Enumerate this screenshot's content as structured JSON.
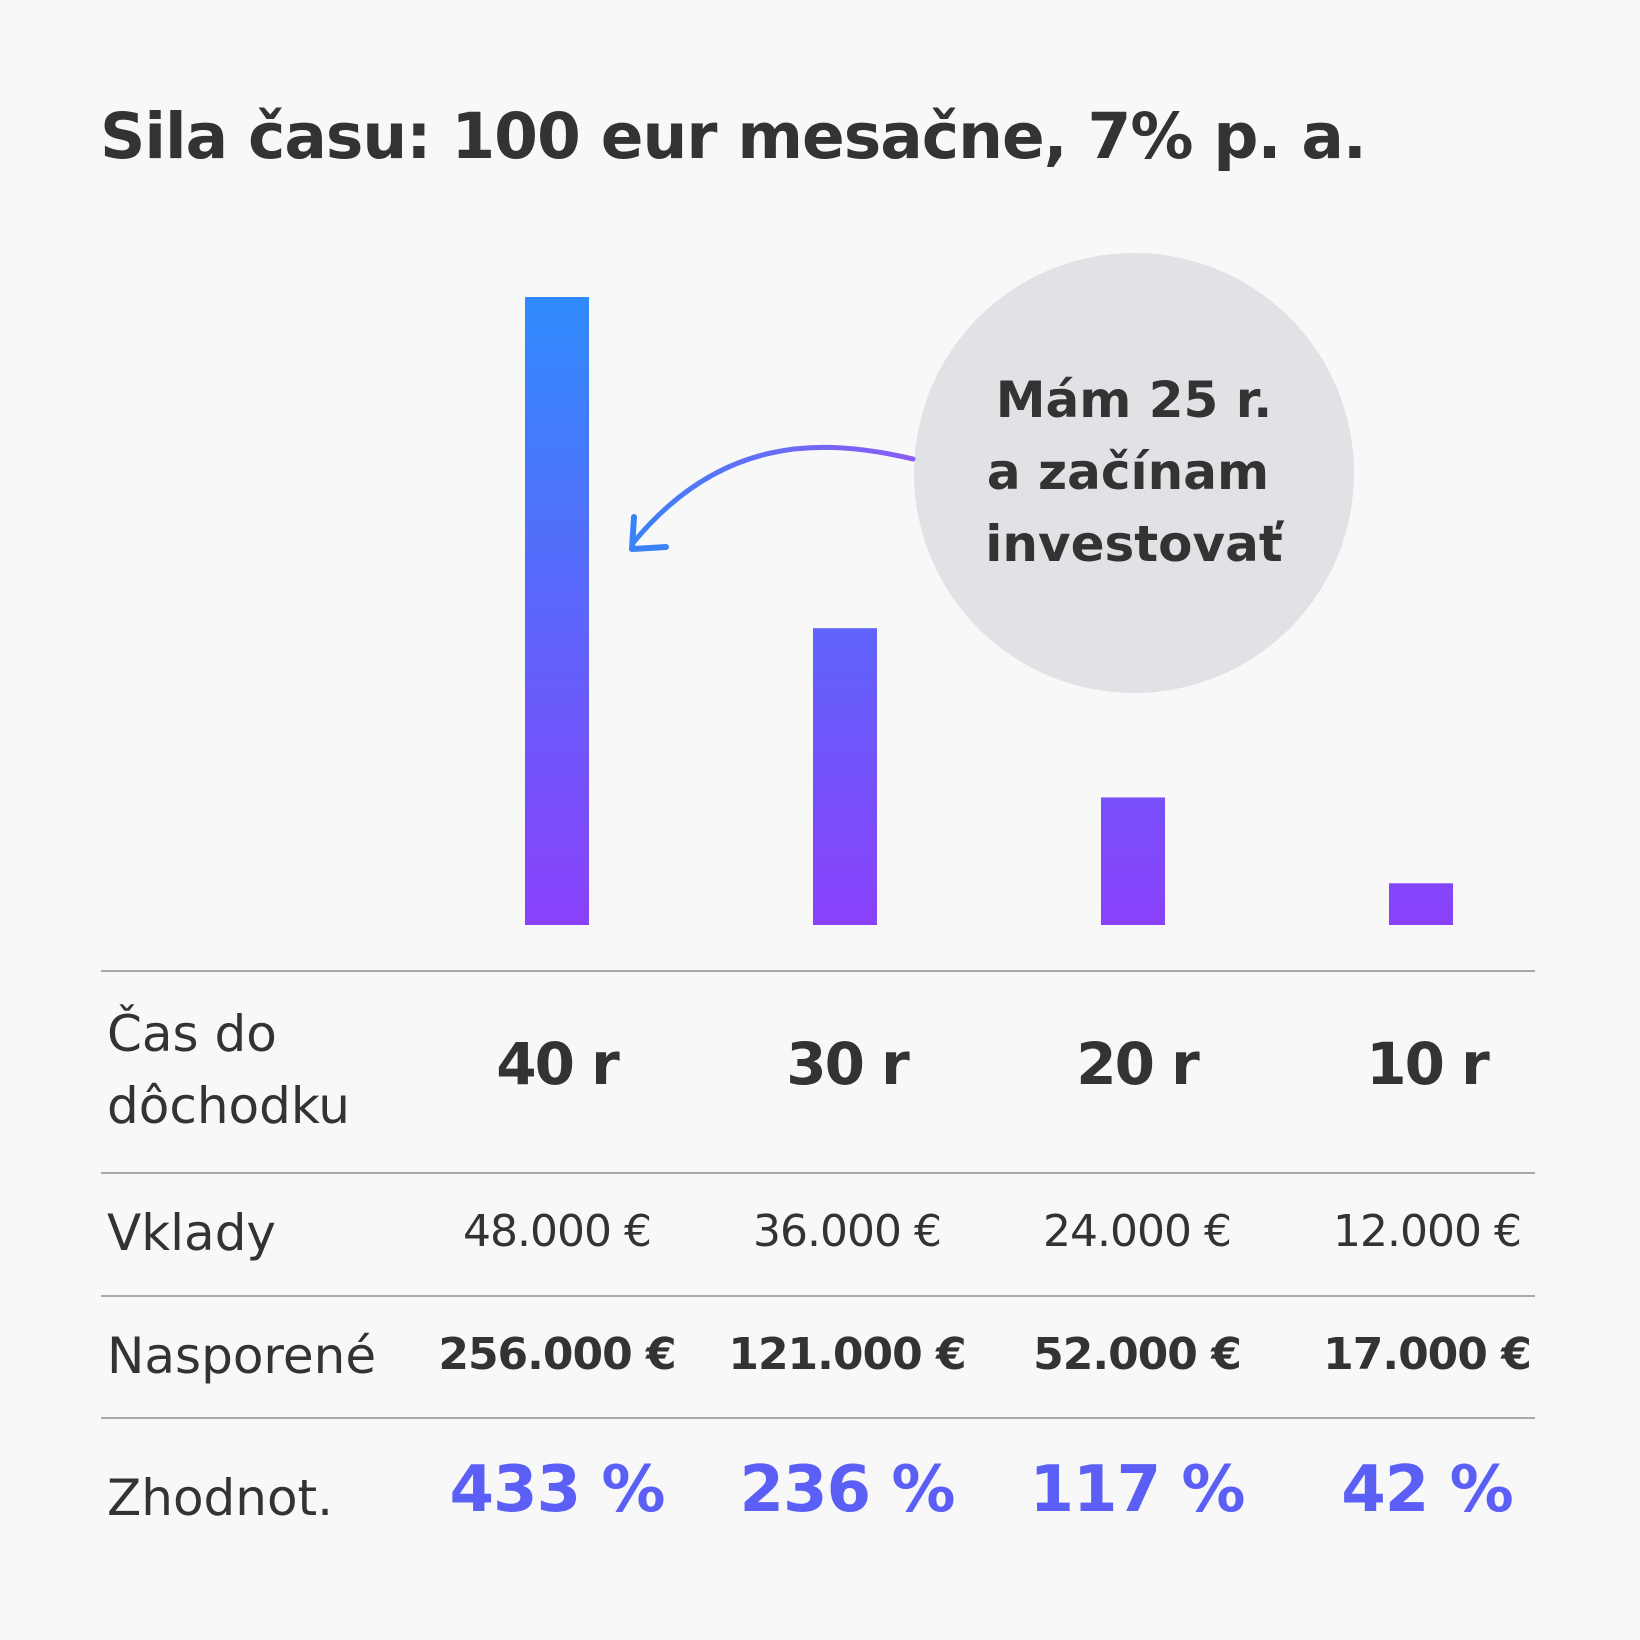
{
  "colors": {
    "background": "#f8f8f8",
    "text": "#333333",
    "bar_top": "#2f8bfc",
    "bar_bottom": "#8a41fa",
    "arrow_start": "#3b82f6",
    "arrow_end": "#8b5cf6",
    "bubble": "#e1e2e5",
    "growth_text": "#5b5ff5",
    "rule": "#a9a9a9"
  },
  "chart_data": {
    "type": "bar",
    "title": "Sila času: 100 eur mesačne, 7% p. a.",
    "categories": [
      "40 r",
      "30 r",
      "20 r",
      "10 r"
    ],
    "values": [
      256000,
      121000,
      52000,
      17000
    ],
    "ylim": [
      0,
      256000
    ],
    "grid": false,
    "legend": "none",
    "annotation": {
      "lines": [
        "Mám 25 r.",
        "a začínam",
        "investovať"
      ],
      "points_to": "40 r"
    }
  },
  "table": {
    "rows": [
      {
        "label_lines": [
          "Čas do",
          "dôchodku"
        ],
        "cells": [
          "40 r",
          "30 r",
          "20 r",
          "10 r"
        ]
      },
      {
        "label": "Vklady",
        "cells": [
          "48.000 €",
          "36.000 €",
          "24.000 €",
          "12.000 €"
        ]
      },
      {
        "label": "Nasporené",
        "cells": [
          "256.000 €",
          "121.000 €",
          "52.000 €",
          "17.000 €"
        ]
      },
      {
        "label": "Zhodnot.",
        "cells": [
          "433 %",
          "236 %",
          "117 %",
          "42 %"
        ]
      }
    ]
  }
}
